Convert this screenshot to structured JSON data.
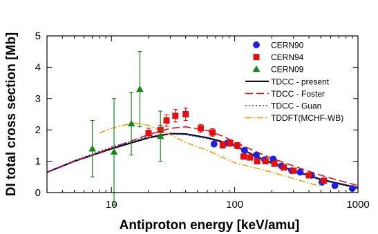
{
  "chart_data": {
    "type": "scatter",
    "xlabel": "Antiproton energy [keV/amu]",
    "ylabel": "DI total cross section [Mb]",
    "xscale": "log",
    "xlim": [
      3,
      1000
    ],
    "ylim": [
      0,
      5
    ],
    "x_ticks": [
      10,
      100,
      1000
    ],
    "x_tick_labels": [
      "10",
      "100",
      "1000"
    ],
    "y_ticks": [
      0,
      1,
      2,
      3,
      4,
      5
    ],
    "y_tick_labels": [
      "0",
      "1",
      "2",
      "3",
      "4",
      "5"
    ],
    "legend_position": "top-right",
    "series": [
      {
        "name": "CERN90",
        "kind": "points",
        "marker": "circle",
        "color": "#1f1fe0",
        "points": [
          {
            "x": 68,
            "y": 1.55
          },
          {
            "x": 87,
            "y": 1.58
          },
          {
            "x": 105,
            "y": 1.5
          },
          {
            "x": 120,
            "y": 1.35
          },
          {
            "x": 150,
            "y": 1.2
          },
          {
            "x": 175,
            "y": 1.05
          },
          {
            "x": 205,
            "y": 1.07
          },
          {
            "x": 240,
            "y": 0.85
          },
          {
            "x": 290,
            "y": 0.7
          },
          {
            "x": 340,
            "y": 0.65
          },
          {
            "x": 420,
            "y": 0.55
          },
          {
            "x": 510,
            "y": 0.33
          },
          {
            "x": 650,
            "y": 0.22
          },
          {
            "x": 900,
            "y": 0.13
          }
        ]
      },
      {
        "name": "CERN94",
        "kind": "points",
        "marker": "square",
        "color": "#e01010",
        "points": [
          {
            "x": 20,
            "y": 1.9,
            "err": 0.15
          },
          {
            "x": 25,
            "y": 2.0,
            "err": 0.15
          },
          {
            "x": 28,
            "y": 2.3,
            "err": 0.18
          },
          {
            "x": 33,
            "y": 2.45,
            "err": 0.2
          },
          {
            "x": 40,
            "y": 2.5,
            "err": 0.2
          },
          {
            "x": 53,
            "y": 2.05,
            "err": 0.12
          },
          {
            "x": 66,
            "y": 1.92,
            "err": 0.12
          },
          {
            "x": 80,
            "y": 1.52,
            "err": 0.1
          },
          {
            "x": 92,
            "y": 1.58,
            "err": 0.1
          },
          {
            "x": 105,
            "y": 1.5,
            "err": 0.1
          },
          {
            "x": 118,
            "y": 1.15,
            "err": 0.08
          },
          {
            "x": 133,
            "y": 1.12,
            "err": 0.08
          },
          {
            "x": 152,
            "y": 1.0,
            "err": 0.07
          },
          {
            "x": 178,
            "y": 1.0,
            "err": 0.07
          },
          {
            "x": 210,
            "y": 0.92,
            "err": 0.06
          },
          {
            "x": 250,
            "y": 0.8,
            "err": 0.06
          },
          {
            "x": 300,
            "y": 0.7,
            "err": 0.05
          },
          {
            "x": 400,
            "y": 0.55,
            "err": 0.05
          },
          {
            "x": 530,
            "y": 0.38,
            "err": 0.04
          }
        ]
      },
      {
        "name": "CERN09",
        "kind": "points",
        "marker": "triangle",
        "color": "#18861a",
        "points": [
          {
            "x": 7,
            "y": 1.4,
            "err": 0.9
          },
          {
            "x": 10.5,
            "y": 1.3,
            "err": 1.7
          },
          {
            "x": 14.5,
            "y": 2.2,
            "err": 1.0
          },
          {
            "x": 17,
            "y": 3.3,
            "err": 1.2
          },
          {
            "x": 25,
            "y": 1.8,
            "err": 0.8
          }
        ]
      },
      {
        "name": "TDCC - present",
        "kind": "line",
        "dash": "solid",
        "color": "#000000",
        "points": [
          {
            "x": 3,
            "y": 0.65
          },
          {
            "x": 5,
            "y": 1.0
          },
          {
            "x": 10,
            "y": 1.4
          },
          {
            "x": 20,
            "y": 1.75
          },
          {
            "x": 30,
            "y": 1.88
          },
          {
            "x": 40,
            "y": 1.87
          },
          {
            "x": 60,
            "y": 1.75
          },
          {
            "x": 80,
            "y": 1.62
          },
          {
            "x": 100,
            "y": 1.5
          },
          {
            "x": 150,
            "y": 1.15
          },
          {
            "x": 200,
            "y": 0.95
          },
          {
            "x": 300,
            "y": 0.7
          },
          {
            "x": 500,
            "y": 0.42
          },
          {
            "x": 1000,
            "y": 0.15
          }
        ]
      },
      {
        "name": "TDCC - Foster",
        "kind": "line",
        "dash": "dashed",
        "color": "#e01010",
        "points": [
          {
            "x": 3,
            "y": 0.65
          },
          {
            "x": 5,
            "y": 1.0
          },
          {
            "x": 10,
            "y": 1.42
          },
          {
            "x": 20,
            "y": 1.85
          },
          {
            "x": 30,
            "y": 2.05
          },
          {
            "x": 40,
            "y": 2.1
          },
          {
            "x": 60,
            "y": 1.98
          },
          {
            "x": 80,
            "y": 1.8
          },
          {
            "x": 100,
            "y": 1.62
          },
          {
            "x": 150,
            "y": 1.3
          },
          {
            "x": 200,
            "y": 1.1
          },
          {
            "x": 300,
            "y": 0.85
          },
          {
            "x": 500,
            "y": 0.55
          },
          {
            "x": 1000,
            "y": 0.22
          }
        ]
      },
      {
        "name": "TDCC - Guan",
        "kind": "line",
        "dash": "dotted",
        "color": "#1f1fe0",
        "points": [
          {
            "x": 3,
            "y": 0.65
          },
          {
            "x": 5,
            "y": 1.02
          },
          {
            "x": 10,
            "y": 1.45
          },
          {
            "x": 20,
            "y": 1.8
          },
          {
            "x": 30,
            "y": 1.88
          },
          {
            "x": 40,
            "y": 1.85
          },
          {
            "x": 60,
            "y": 1.72
          },
          {
            "x": 80,
            "y": 1.6
          },
          {
            "x": 100,
            "y": 1.48
          },
          {
            "x": 150,
            "y": 1.15
          },
          {
            "x": 200,
            "y": 0.93
          },
          {
            "x": 300,
            "y": 0.68
          },
          {
            "x": 500,
            "y": 0.4
          },
          {
            "x": 1000,
            "y": 0.13
          }
        ]
      },
      {
        "name": "TDDFT(MCHF-WB)",
        "kind": "line",
        "dash": "dashdot",
        "color": "#f39c12",
        "points": [
          {
            "x": 8,
            "y": 1.9
          },
          {
            "x": 10,
            "y": 2.05
          },
          {
            "x": 15,
            "y": 2.22
          },
          {
            "x": 20,
            "y": 2.15
          },
          {
            "x": 30,
            "y": 1.85
          },
          {
            "x": 40,
            "y": 1.6
          },
          {
            "x": 60,
            "y": 1.35
          },
          {
            "x": 80,
            "y": 1.12
          },
          {
            "x": 100,
            "y": 0.95
          },
          {
            "x": 150,
            "y": 0.78
          },
          {
            "x": 200,
            "y": 0.65
          },
          {
            "x": 300,
            "y": 0.45
          },
          {
            "x": 400,
            "y": 0.3
          },
          {
            "x": 500,
            "y": 0.2
          }
        ]
      }
    ]
  }
}
